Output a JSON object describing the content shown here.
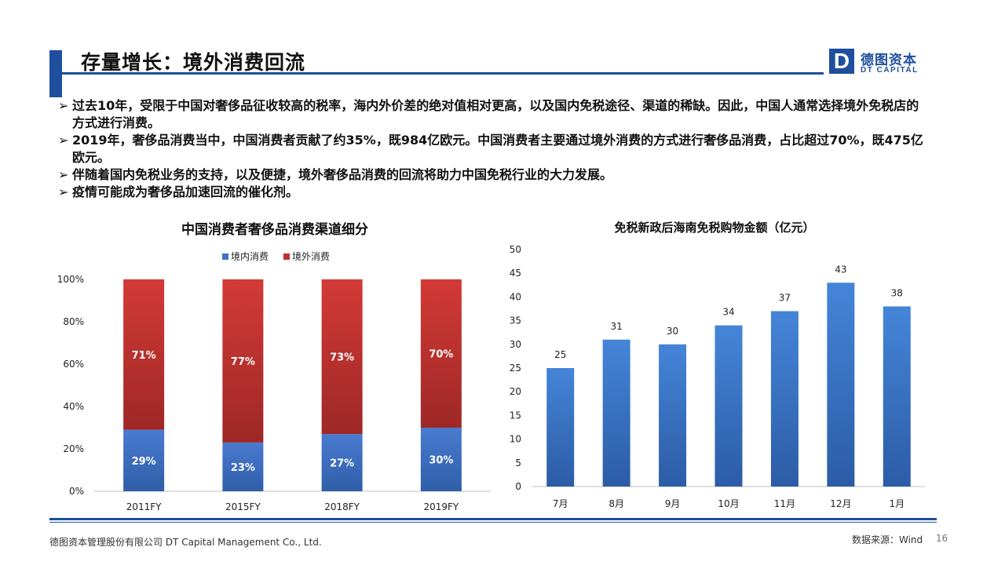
{
  "header": {
    "title": "存量增长：境外消费回流",
    "logo_letter": "D",
    "logo_cn": "德图资本",
    "logo_en": "DT CAPITAL"
  },
  "bullets": [
    "过去10年，受限于中国对奢侈品征收较高的税率，海内外价差的绝对值相对更高，以及国内免税途径、渠道的稀缺。因此，中国人通常选择境外免税店的方式进行消费。",
    "2019年，奢侈品消费当中，中国消费者贡献了约35%，既984亿欧元。中国消费者主要通过境外消费的方式进行奢侈品消费，占比超过70%，既475亿欧元。",
    "伴随着国内免税业务的支持，以及便捷，境外奢侈品消费的回流将助力中国免税行业的大力发展。",
    "疫情可能成为奢侈品加速回流的催化剂。"
  ],
  "bullet_arrow": "➢",
  "chart_data": [
    {
      "type": "bar",
      "stacked": true,
      "title": "中国消费者奢侈品消费渠道细分",
      "categories": [
        "2011FY",
        "2015FY",
        "2018FY",
        "2019FY"
      ],
      "series": [
        {
          "name": "境内消费",
          "values": [
            29,
            23,
            27,
            30
          ],
          "labels": [
            "29%",
            "23%",
            "27%",
            "30%"
          ],
          "color": "#4272c4"
        },
        {
          "name": "境外消费",
          "values": [
            71,
            77,
            73,
            70
          ],
          "labels": [
            "71%",
            "77%",
            "73%",
            "70%"
          ],
          "color": "#c0302f"
        }
      ],
      "ylim": [
        0,
        100
      ],
      "yticks": [
        "0%",
        "20%",
        "40%",
        "60%",
        "80%",
        "100%"
      ],
      "grid": false,
      "legend": "top"
    },
    {
      "type": "bar",
      "title": "免税新政后海南免税购物金额（亿元）",
      "categories": [
        "7月",
        "8月",
        "9月",
        "10月",
        "11月",
        "12月",
        "1月"
      ],
      "values": [
        25,
        31,
        30,
        34,
        37,
        43,
        38
      ],
      "ylim": [
        0,
        50
      ],
      "yticks": [
        "0",
        "5",
        "10",
        "15",
        "20",
        "25",
        "30",
        "35",
        "40",
        "45",
        "50"
      ],
      "color": "#3d7bd0",
      "grid": false
    }
  ],
  "footer": {
    "company": "德图资本管理股份有限公司  DT Capital  Management  Co., Ltd.",
    "source": "数据来源：Wind",
    "page": "16"
  }
}
